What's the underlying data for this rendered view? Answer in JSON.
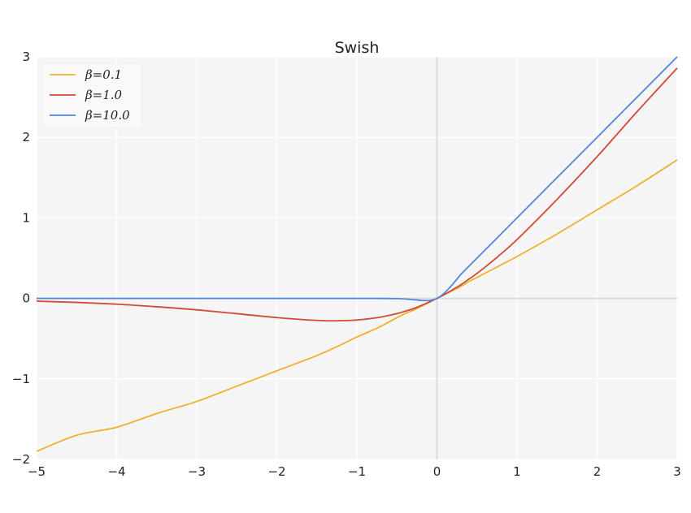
{
  "chart_data": {
    "type": "line",
    "title": "Swish",
    "xlabel": "",
    "ylabel": "",
    "xlim": [
      -5,
      3
    ],
    "ylim": [
      -2,
      3
    ],
    "xticks": [
      -5,
      -4,
      -3,
      -2,
      -1,
      0,
      1,
      2,
      3
    ],
    "yticks": [
      -2,
      -1,
      0,
      1,
      2,
      3
    ],
    "xtick_labels": [
      "−5",
      "−4",
      "−3",
      "−2",
      "−1",
      "0",
      "1",
      "2",
      "3"
    ],
    "ytick_labels": [
      "−2",
      "−1",
      "0",
      "1",
      "2",
      "3"
    ],
    "grid": true,
    "legend_position": "top-left",
    "background": "#f5f5f5",
    "x": [
      -5,
      -4.5,
      -4,
      -3.5,
      -3,
      -2.5,
      -2,
      -1.5,
      -1.25,
      -1,
      -0.75,
      -0.5,
      -0.4,
      -0.3,
      -0.2,
      -0.1,
      0,
      0.1,
      0.2,
      0.3,
      0.4,
      0.5,
      0.75,
      1,
      1.5,
      2,
      2.5,
      3
    ],
    "series": [
      {
        "name": "β = 0.1",
        "legend_label": "β=0.1",
        "color": "#f0b030",
        "values": [
          -1.9,
          -1.7,
          -1.6,
          -1.43,
          -1.28,
          -1.09,
          -0.9,
          -0.71,
          -0.6,
          -0.48,
          -0.37,
          -0.24,
          -0.19,
          -0.15,
          -0.1,
          -0.05,
          0,
          0.05,
          0.1,
          0.15,
          0.21,
          0.26,
          0.39,
          0.52,
          0.8,
          1.1,
          1.4,
          1.72
        ]
      },
      {
        "name": "β = 1.0",
        "legend_label": "β=1.0",
        "color": "#d04a38",
        "values": [
          -0.034,
          -0.05,
          -0.072,
          -0.104,
          -0.142,
          -0.19,
          -0.238,
          -0.274,
          -0.278,
          -0.269,
          -0.24,
          -0.189,
          -0.16,
          -0.13,
          -0.09,
          -0.048,
          0,
          0.052,
          0.11,
          0.17,
          0.24,
          0.31,
          0.51,
          0.73,
          1.23,
          1.76,
          2.32,
          2.86
        ]
      },
      {
        "name": "β = 10.0",
        "legend_label": "β=10.0",
        "color": "#4f87e0",
        "values": [
          0,
          0,
          0,
          0,
          0,
          0,
          0,
          0,
          0,
          0,
          -0.0004,
          -0.003,
          -0.007,
          -0.015,
          -0.024,
          -0.027,
          0,
          0.073,
          0.18,
          0.3,
          0.4,
          0.5,
          0.75,
          1,
          1.5,
          2,
          2.5,
          3
        ]
      }
    ]
  }
}
